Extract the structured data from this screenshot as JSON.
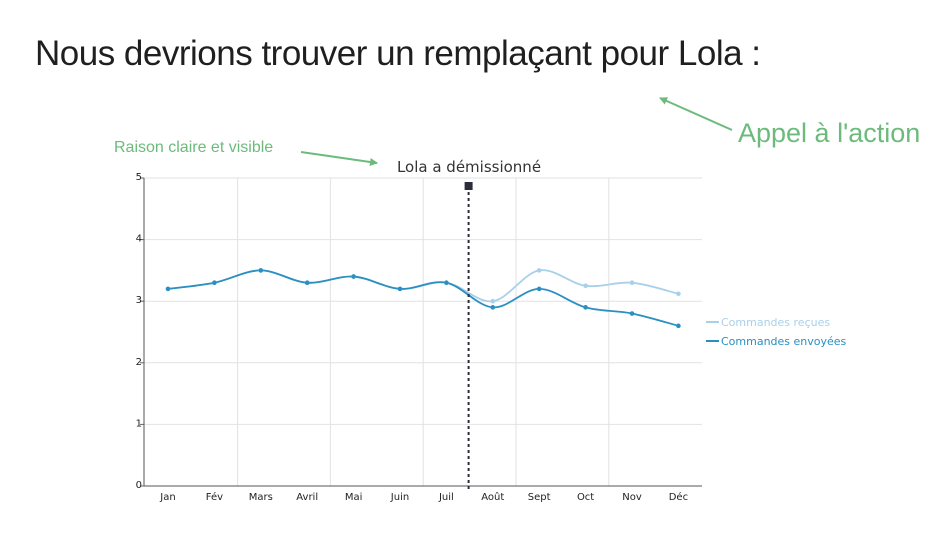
{
  "slide": {
    "headline": "Nous devrions trouver un remplaçant pour Lola :",
    "annotations": {
      "call_to_action": "Appel à l'action",
      "reason": "Raison claire et visible"
    },
    "annotation_color": "#6dbb7c"
  },
  "chart_data": {
    "type": "line",
    "title": "Lola a démissionné",
    "xlabel": "",
    "ylabel": "",
    "categories": [
      "Jan",
      "Fév",
      "Mars",
      "Avril",
      "Mai",
      "Juin",
      "Juil",
      "Août",
      "Sept",
      "Oct",
      "Nov",
      "Déc"
    ],
    "ylim": [
      0,
      5
    ],
    "yticks": [
      0,
      1,
      2,
      3,
      4,
      5
    ],
    "grid": true,
    "legend_position": "right",
    "event_marker": {
      "after_category": "Juil",
      "style": "dashed vertical line"
    },
    "series": [
      {
        "name": "Commandes reçues",
        "color": "#a8d0ea",
        "values": [
          3.2,
          3.3,
          3.5,
          3.3,
          3.4,
          3.2,
          3.3,
          3.0,
          3.5,
          3.25,
          3.3,
          3.12
        ]
      },
      {
        "name": "Commandes envoyées",
        "color": "#2a8fc1",
        "values": [
          3.2,
          3.3,
          3.5,
          3.3,
          3.4,
          3.2,
          3.3,
          2.9,
          3.2,
          2.9,
          2.8,
          2.6
        ]
      }
    ]
  }
}
